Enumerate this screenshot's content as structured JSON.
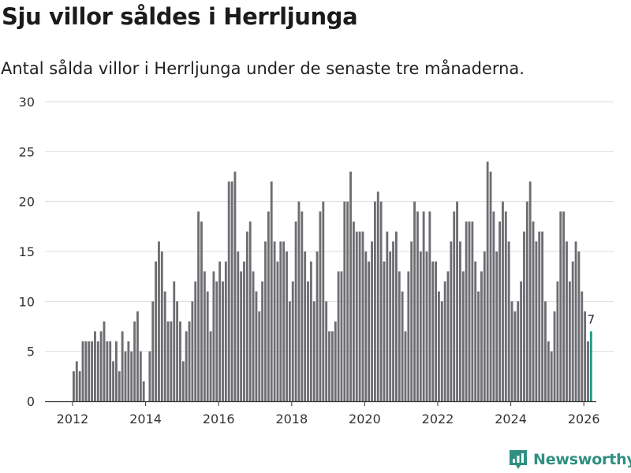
{
  "title": "Sju villor såldes i Herrljunga",
  "subtitle": "Antal sålda villor i Herrljunga under de senaste tre månaderna.",
  "brand": {
    "name": "Newsworthy",
    "icon": "newsworthy-logo-icon",
    "color": "#2f8f80"
  },
  "colors": {
    "bar": "#6e6d72",
    "highlight": "#1f9a8a",
    "grid": "#dddddd",
    "axis": "#333333"
  },
  "chart_data": {
    "type": "bar",
    "title": "Sju villor såldes i Herrljunga",
    "xlabel": "",
    "ylabel": "",
    "ylim": [
      0,
      30
    ],
    "yticks": [
      0,
      5,
      10,
      15,
      20,
      25,
      30
    ],
    "xticks": [
      {
        "label": "2012",
        "year": 2012
      },
      {
        "label": "2014",
        "year": 2014
      },
      {
        "label": "2016",
        "year": 2016
      },
      {
        "label": "2018",
        "year": 2018
      },
      {
        "label": "2020",
        "year": 2020
      },
      {
        "label": "2022",
        "year": 2022
      },
      {
        "label": "2024",
        "year": 2024
      },
      {
        "label": "2026",
        "year": 2026
      }
    ],
    "start": "2012-01",
    "frequency": "monthly",
    "values": [
      3,
      4,
      3,
      6,
      6,
      6,
      6,
      7,
      6,
      7,
      8,
      6,
      6,
      4,
      6,
      3,
      7,
      5,
      6,
      5,
      8,
      9,
      5,
      2,
      0,
      5,
      10,
      14,
      16,
      15,
      11,
      8,
      8,
      12,
      10,
      8,
      4,
      7,
      8,
      10,
      12,
      19,
      18,
      13,
      11,
      7,
      13,
      12,
      14,
      12,
      14,
      22,
      22,
      23,
      15,
      13,
      14,
      17,
      18,
      13,
      11,
      9,
      12,
      16,
      19,
      22,
      16,
      14,
      16,
      16,
      15,
      10,
      12,
      18,
      20,
      19,
      15,
      12,
      14,
      10,
      15,
      19,
      20,
      10,
      7,
      7,
      8,
      13,
      13,
      20,
      20,
      23,
      18,
      17,
      17,
      17,
      15,
      14,
      16,
      20,
      21,
      20,
      14,
      17,
      15,
      16,
      17,
      13,
      11,
      7,
      13,
      16,
      20,
      19,
      15,
      19,
      15,
      19,
      14,
      14,
      11,
      10,
      12,
      13,
      16,
      19,
      20,
      16,
      13,
      18,
      18,
      18,
      14,
      11,
      13,
      15,
      24,
      23,
      19,
      15,
      18,
      20,
      19,
      16,
      10,
      9,
      10,
      12,
      17,
      20,
      22,
      18,
      16,
      17,
      17,
      10,
      6,
      5,
      9,
      12,
      19,
      19,
      16,
      12,
      14,
      16,
      15,
      11,
      9,
      6,
      7
    ],
    "highlight": {
      "index": 170,
      "value": 7,
      "label": "7"
    }
  }
}
